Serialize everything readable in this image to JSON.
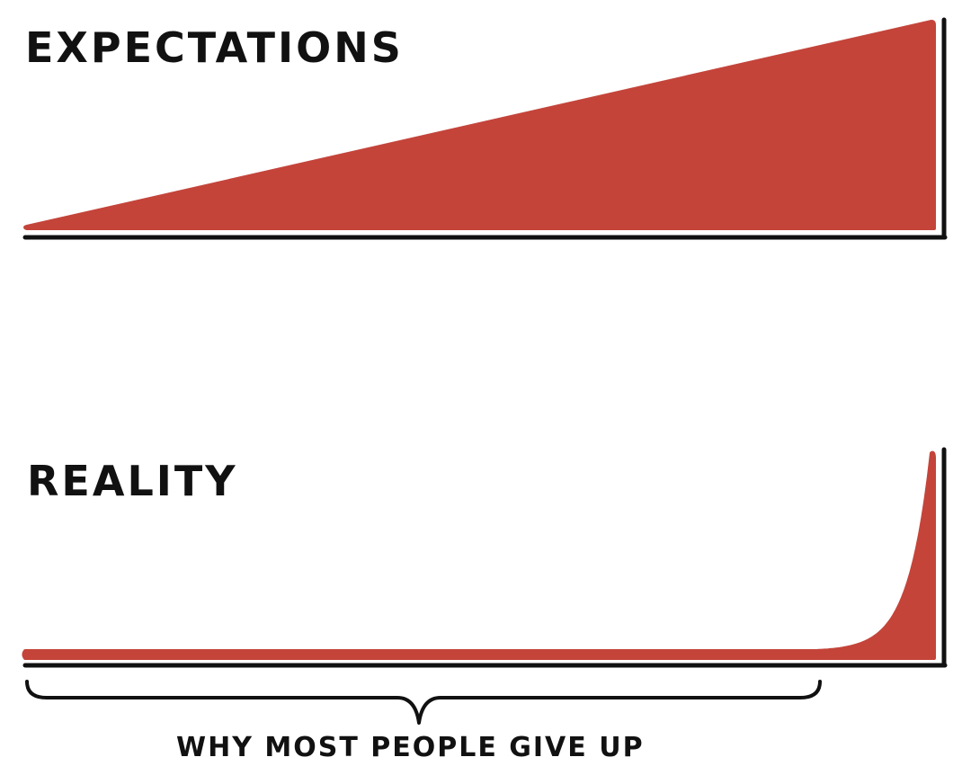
{
  "colors": {
    "fill": "#c4443a",
    "axis": "#111111",
    "background": "#ffffff"
  },
  "chart_data": [
    {
      "type": "area",
      "title": "EXPECTATIONS",
      "shape": "linear",
      "x": [
        0,
        1
      ],
      "values": [
        0,
        1
      ],
      "grid": false,
      "legend": "none"
    },
    {
      "type": "area",
      "title": "REALITY",
      "shape": "flat-then-exponential",
      "x": [
        0,
        0.87,
        0.9,
        0.95,
        1
      ],
      "values": [
        0.08,
        0.08,
        0.12,
        0.45,
        1
      ],
      "grid": false,
      "legend": "none",
      "annotation": {
        "text": "WHY MOST PEOPLE GIVE UP",
        "span": [
          0,
          0.87
        ]
      }
    }
  ]
}
